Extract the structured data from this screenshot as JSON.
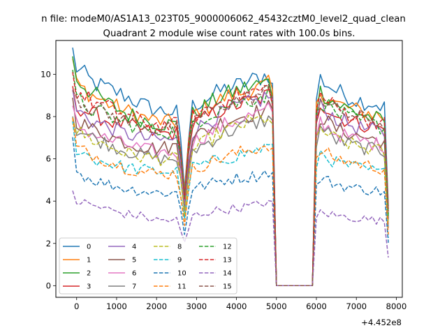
{
  "chart_data": {
    "type": "line",
    "suptitle": "n file: modeM0/AS1A13_023T05_9000006062_45432cztM0_level2_quad_clean",
    "title": "Quadrant 2 module wise count rates with 100.0s bins.",
    "xlabel": "",
    "ylabel": "",
    "x_offset_label": "+4.452e8",
    "xlim": [
      -520,
      8150
    ],
    "ylim": [
      -0.55,
      11.6
    ],
    "xticks": [
      0,
      1000,
      2000,
      3000,
      4000,
      5000,
      6000,
      7000,
      8000
    ],
    "xtick_labels": [
      "0",
      "1000",
      "2000",
      "3000",
      "4000",
      "5000",
      "6000",
      "7000",
      "8000"
    ],
    "yticks": [
      0,
      2,
      4,
      6,
      8,
      10
    ],
    "ytick_labels": [
      "0",
      "2",
      "4",
      "6",
      "8",
      "10"
    ],
    "grid": false,
    "legend_position": "lower-left",
    "legend_columns": 4,
    "gap": [
      4970,
      5990
    ],
    "dip_at": 2680,
    "series": [
      {
        "name": "0",
        "color": "#1f77b4",
        "dash": "solid",
        "profile": [
          11.1,
          10.3,
          9.6,
          9.3,
          9.0,
          8.6,
          8.3,
          8.2,
          8.5,
          8.9,
          9.3,
          9.5,
          9.8,
          10.0,
          9.4,
          0.0,
          9.8,
          9.2,
          8.8,
          8.6,
          8.4
        ]
      },
      {
        "name": "1",
        "color": "#ff7f0e",
        "dash": "solid",
        "profile": [
          10.7,
          9.5,
          9.0,
          8.6,
          8.3,
          8.0,
          7.8,
          7.7,
          8.1,
          8.5,
          8.9,
          9.1,
          9.3,
          9.5,
          9.2,
          0.0,
          9.2,
          8.6,
          8.3,
          8.1,
          7.9
        ]
      },
      {
        "name": "2",
        "color": "#2ca02c",
        "dash": "solid",
        "profile": [
          11.0,
          9.8,
          9.1,
          8.6,
          8.2,
          7.9,
          7.7,
          7.6,
          8.1,
          8.6,
          9.0,
          9.3,
          9.5,
          9.6,
          9.1,
          0.0,
          9.2,
          8.6,
          8.2,
          7.9,
          7.6
        ]
      },
      {
        "name": "3",
        "color": "#d62728",
        "dash": "solid",
        "profile": [
          9.1,
          8.5,
          8.1,
          7.8,
          7.6,
          7.4,
          7.2,
          7.2,
          7.6,
          8.0,
          8.4,
          8.6,
          8.8,
          9.0,
          8.6,
          0.0,
          8.7,
          8.0,
          7.7,
          7.5,
          7.3
        ]
      },
      {
        "name": "4",
        "color": "#9467bd",
        "dash": "solid",
        "profile": [
          9.0,
          8.3,
          7.8,
          7.5,
          7.2,
          7.0,
          6.9,
          6.9,
          7.3,
          7.8,
          8.2,
          8.5,
          8.7,
          9.0,
          8.8,
          0.0,
          8.5,
          7.9,
          7.5,
          7.3,
          7.1
        ]
      },
      {
        "name": "5",
        "color": "#8c564b",
        "dash": "solid",
        "profile": [
          8.7,
          7.8,
          7.4,
          7.1,
          6.8,
          6.6,
          6.5,
          6.6,
          7.0,
          7.4,
          7.8,
          8.0,
          8.2,
          8.4,
          8.1,
          0.0,
          8.0,
          7.4,
          7.1,
          6.9,
          6.8
        ]
      },
      {
        "name": "6",
        "color": "#e377c2",
        "dash": "solid",
        "profile": [
          8.3,
          7.6,
          7.2,
          6.9,
          6.7,
          6.5,
          6.3,
          6.3,
          6.8,
          7.2,
          7.6,
          7.9,
          8.1,
          8.3,
          8.0,
          0.0,
          7.8,
          7.2,
          6.9,
          6.7,
          6.6
        ]
      },
      {
        "name": "7",
        "color": "#7f7f7f",
        "dash": "solid",
        "profile": [
          8.1,
          7.4,
          7.0,
          6.7,
          6.4,
          6.2,
          6.0,
          6.0,
          6.4,
          6.8,
          7.2,
          7.5,
          7.7,
          7.9,
          7.6,
          0.0,
          7.5,
          6.9,
          6.6,
          6.4,
          6.3
        ]
      },
      {
        "name": "8",
        "color": "#bcbd22",
        "dash": "dashed",
        "profile": [
          8.2,
          7.3,
          6.9,
          6.6,
          6.3,
          6.1,
          6.0,
          6.0,
          6.4,
          6.9,
          7.3,
          7.6,
          7.8,
          8.0,
          7.5,
          0.0,
          7.4,
          6.9,
          6.6,
          6.4,
          6.3
        ]
      },
      {
        "name": "9",
        "color": "#17becf",
        "dash": "dashed",
        "profile": [
          7.6,
          6.5,
          6.0,
          5.8,
          5.6,
          5.5,
          5.4,
          5.4,
          5.6,
          5.8,
          6.0,
          6.2,
          6.4,
          6.6,
          6.4,
          0.0,
          6.3,
          5.8,
          5.6,
          5.4,
          5.3
        ]
      },
      {
        "name": "10",
        "color": "#1f77b4",
        "dash": "dashed",
        "profile": [
          7.4,
          5.4,
          5.0,
          4.8,
          4.6,
          4.5,
          4.4,
          4.4,
          4.6,
          4.8,
          5.0,
          5.1,
          5.2,
          5.4,
          5.3,
          0.0,
          5.1,
          4.8,
          4.6,
          4.5,
          4.4
        ]
      },
      {
        "name": "11",
        "color": "#ff7f0e",
        "dash": "dashed",
        "profile": [
          7.8,
          6.5,
          6.2,
          5.9,
          5.6,
          5.4,
          5.3,
          5.3,
          5.5,
          5.8,
          6.1,
          6.3,
          6.5,
          6.7,
          6.4,
          0.0,
          6.4,
          6.0,
          5.8,
          5.6,
          5.5
        ]
      },
      {
        "name": "12",
        "color": "#2ca02c",
        "dash": "dashed",
        "profile": [
          9.8,
          8.8,
          8.3,
          8.0,
          7.7,
          7.5,
          7.3,
          7.3,
          7.7,
          8.1,
          8.5,
          8.7,
          8.9,
          9.1,
          8.8,
          0.0,
          8.8,
          8.2,
          7.8,
          7.6,
          7.4
        ]
      },
      {
        "name": "13",
        "color": "#d62728",
        "dash": "dashed",
        "profile": [
          10.0,
          9.2,
          8.7,
          8.4,
          8.1,
          7.8,
          7.6,
          7.6,
          8.0,
          8.4,
          8.8,
          9.0,
          9.2,
          9.3,
          8.9,
          0.0,
          9.0,
          8.4,
          8.0,
          7.8,
          7.6
        ]
      },
      {
        "name": "14",
        "color": "#9467bd",
        "dash": "dashed",
        "profile": [
          4.5,
          4.0,
          3.8,
          3.6,
          3.4,
          3.3,
          3.1,
          3.1,
          3.3,
          3.5,
          3.6,
          3.7,
          3.8,
          4.0,
          3.8,
          0.0,
          3.5,
          3.3,
          3.2,
          3.1,
          3.0
        ]
      },
      {
        "name": "15",
        "color": "#8c564b",
        "dash": "dashed",
        "profile": [
          9.7,
          8.9,
          8.4,
          8.1,
          7.8,
          7.6,
          7.4,
          7.4,
          7.8,
          8.2,
          8.6,
          8.8,
          9.0,
          9.2,
          8.8,
          0.0,
          8.9,
          8.3,
          8.0,
          7.8,
          7.6
        ]
      }
    ]
  }
}
